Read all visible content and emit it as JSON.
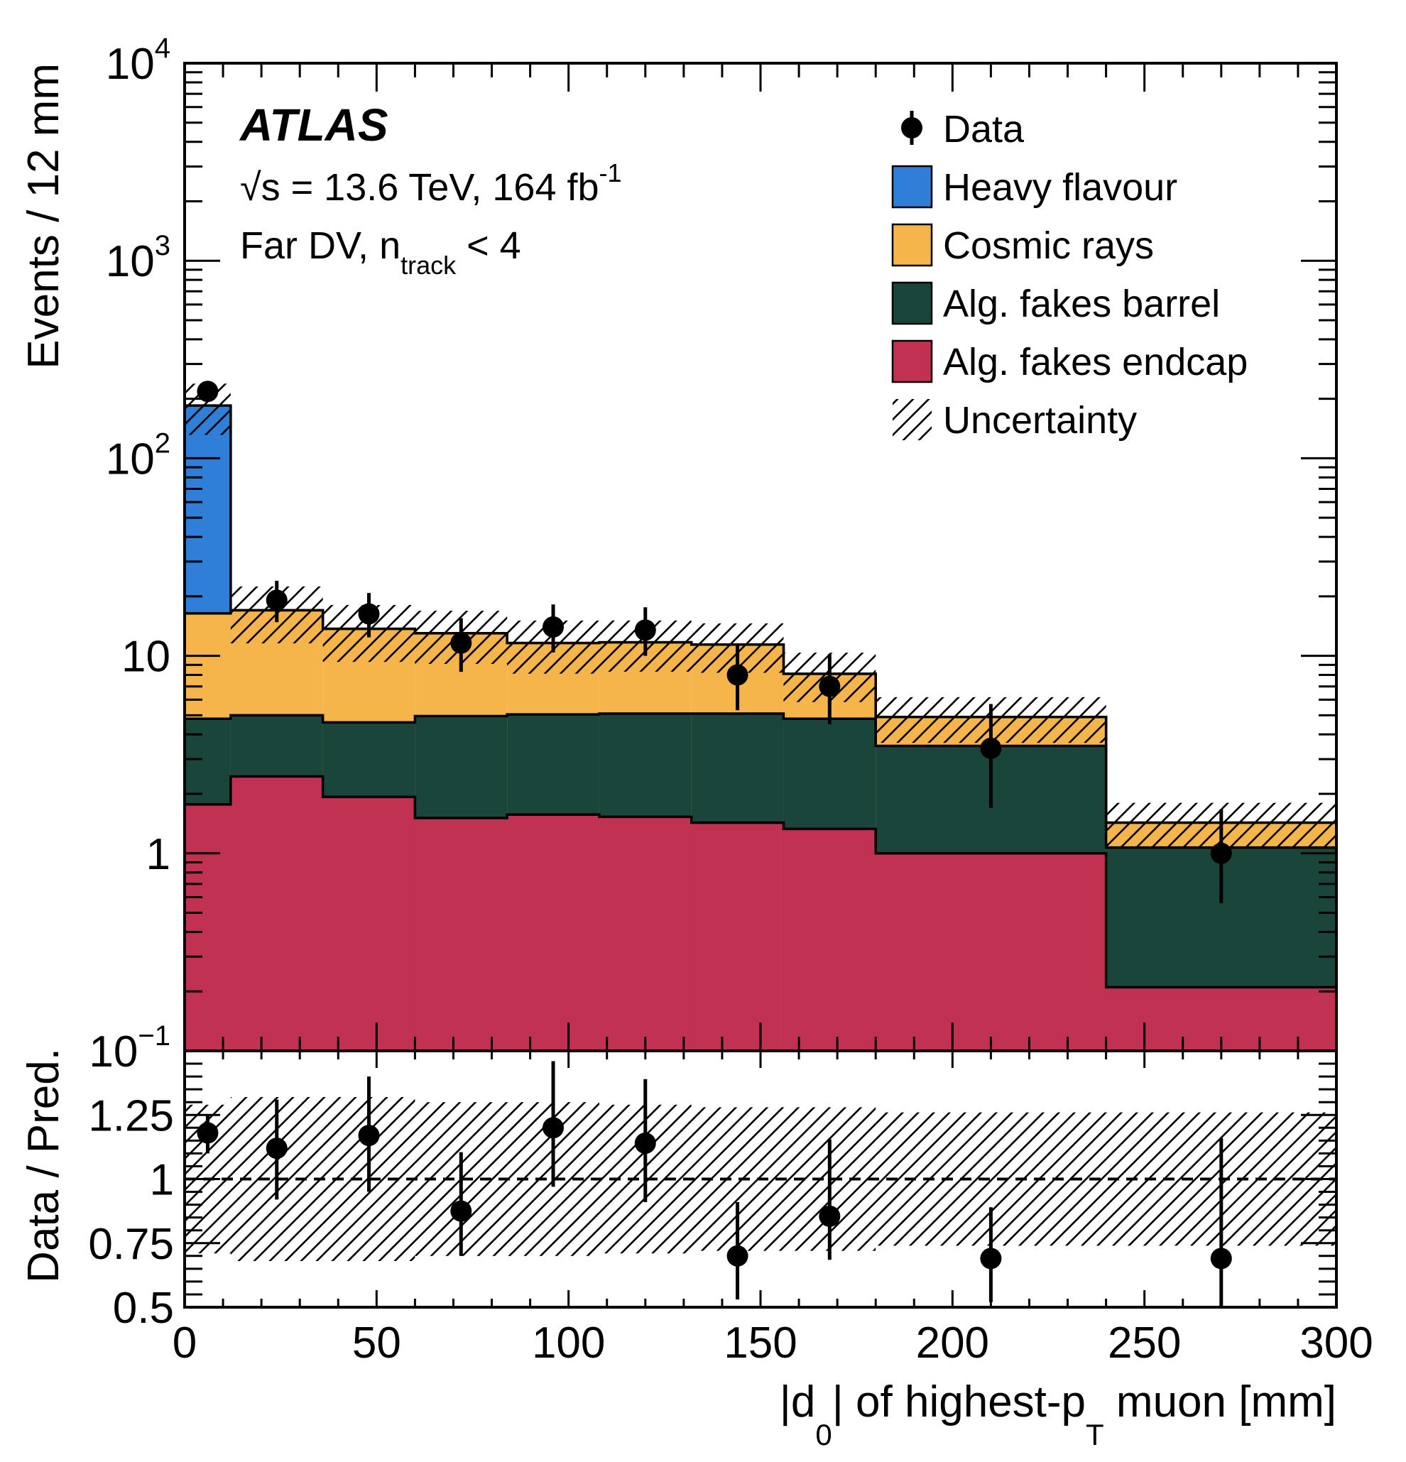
{
  "chart_data": {
    "type": "bar",
    "subtype": "stacked-histogram-with-ratio",
    "experiment_label": "ATLAS",
    "energy_label": "√s = 13.6 TeV, 164 fb",
    "energy_label_sup": "-1",
    "selection_label": "Far DV, n",
    "selection_label_sub": "track",
    "selection_label_tail": " < 4",
    "xlabel_parts": [
      "|d",
      "0",
      "| of highest-p",
      "T",
      " muon [mm]"
    ],
    "ylabel": "Events / 12 mm",
    "ratio_ylabel": "Data / Pred.",
    "x_range": [
      0,
      300
    ],
    "y_range": [
      0.1,
      10000
    ],
    "y_scale": "log",
    "ratio_range": [
      0.5,
      1.5
    ],
    "x_ticks": [
      0,
      50,
      100,
      150,
      200,
      250,
      300
    ],
    "y_tick_labels": [
      {
        "value": 10000,
        "base": "10",
        "exp": "4"
      },
      {
        "value": 1000,
        "base": "10",
        "exp": "3"
      },
      {
        "value": 100,
        "base": "10",
        "exp": "2"
      },
      {
        "value": 10,
        "base": "10",
        "exp": ""
      },
      {
        "value": 1,
        "base": "1",
        "exp": ""
      },
      {
        "value": 0.1,
        "base": "10",
        "exp": "−1"
      }
    ],
    "ratio_ticks": [
      {
        "value": 1.25,
        "label": "1.25"
      },
      {
        "value": 1.0,
        "label": "1"
      },
      {
        "value": 0.75,
        "label": "0.75"
      },
      {
        "value": 0.5,
        "label": "0.5"
      }
    ],
    "bin_edges": [
      0,
      12,
      36,
      60,
      84,
      108,
      132,
      156,
      180,
      240,
      300
    ],
    "legend_position": "top-right",
    "legend": [
      {
        "key": "data",
        "label": "Data",
        "kind": "marker"
      },
      {
        "key": "hf",
        "label": "Heavy flavour",
        "kind": "fill"
      },
      {
        "key": "cosmic",
        "label": "Cosmic rays",
        "kind": "fill"
      },
      {
        "key": "barrel",
        "label": "Alg. fakes barrel",
        "kind": "fill"
      },
      {
        "key": "endcap",
        "label": "Alg. fakes endcap",
        "kind": "fill"
      },
      {
        "key": "unc",
        "label": "Uncertainty",
        "kind": "hatch"
      }
    ],
    "series": [
      {
        "key": "endcap",
        "name": "Alg. fakes endcap",
        "color": "#c13252",
        "values": [
          1.77,
          2.45,
          1.93,
          1.51,
          1.57,
          1.53,
          1.43,
          1.33,
          1.0,
          0.21
        ]
      },
      {
        "key": "barrel",
        "name": "Alg. fakes barrel",
        "color": "#1a453b",
        "values": [
          3.03,
          2.55,
          2.67,
          3.44,
          3.48,
          3.57,
          3.67,
          3.47,
          2.5,
          0.86
        ]
      },
      {
        "key": "cosmic",
        "name": "Cosmic rays",
        "color": "#f5b54a",
        "values": [
          11.6,
          12.0,
          9.1,
          8.05,
          6.55,
          6.6,
          6.3,
          3.3,
          1.4,
          0.36
        ]
      },
      {
        "key": "hf",
        "name": "Heavy flavour",
        "color": "#2f7ed8",
        "values": [
          168.6,
          0,
          0,
          0,
          0,
          0,
          0,
          0,
          0,
          0
        ]
      }
    ],
    "uncertainty_rel": [
      0.29,
      0.32,
      0.32,
      0.3,
      0.3,
      0.29,
      0.28,
      0.28,
      0.26,
      0.26
    ],
    "data": {
      "name": "Data",
      "x": [
        6,
        24,
        48,
        72,
        96,
        120,
        144,
        168,
        210,
        270
      ],
      "values": [
        218,
        19.1,
        16.3,
        11.6,
        14.0,
        13.5,
        8.0,
        7.0,
        3.4,
        1.0
      ],
      "err_up": [
        15,
        4.9,
        4.5,
        3.9,
        4.2,
        4.1,
        3.4,
        3.2,
        2.3,
        0.67
      ],
      "err_down": [
        15,
        4.3,
        3.9,
        3.3,
        3.6,
        3.5,
        2.7,
        2.5,
        1.7,
        0.44
      ]
    },
    "ratio": {
      "values": [
        1.18,
        1.12,
        1.17,
        0.875,
        1.2,
        1.14,
        0.7,
        0.855,
        0.69,
        0.69
      ],
      "err_up": [
        0.07,
        0.19,
        0.23,
        0.23,
        0.26,
        0.25,
        0.21,
        0.3,
        0.2,
        0.47
      ],
      "err_down": [
        0.08,
        0.2,
        0.22,
        0.175,
        0.23,
        0.23,
        0.17,
        0.17,
        0.17,
        0.19
      ]
    }
  }
}
